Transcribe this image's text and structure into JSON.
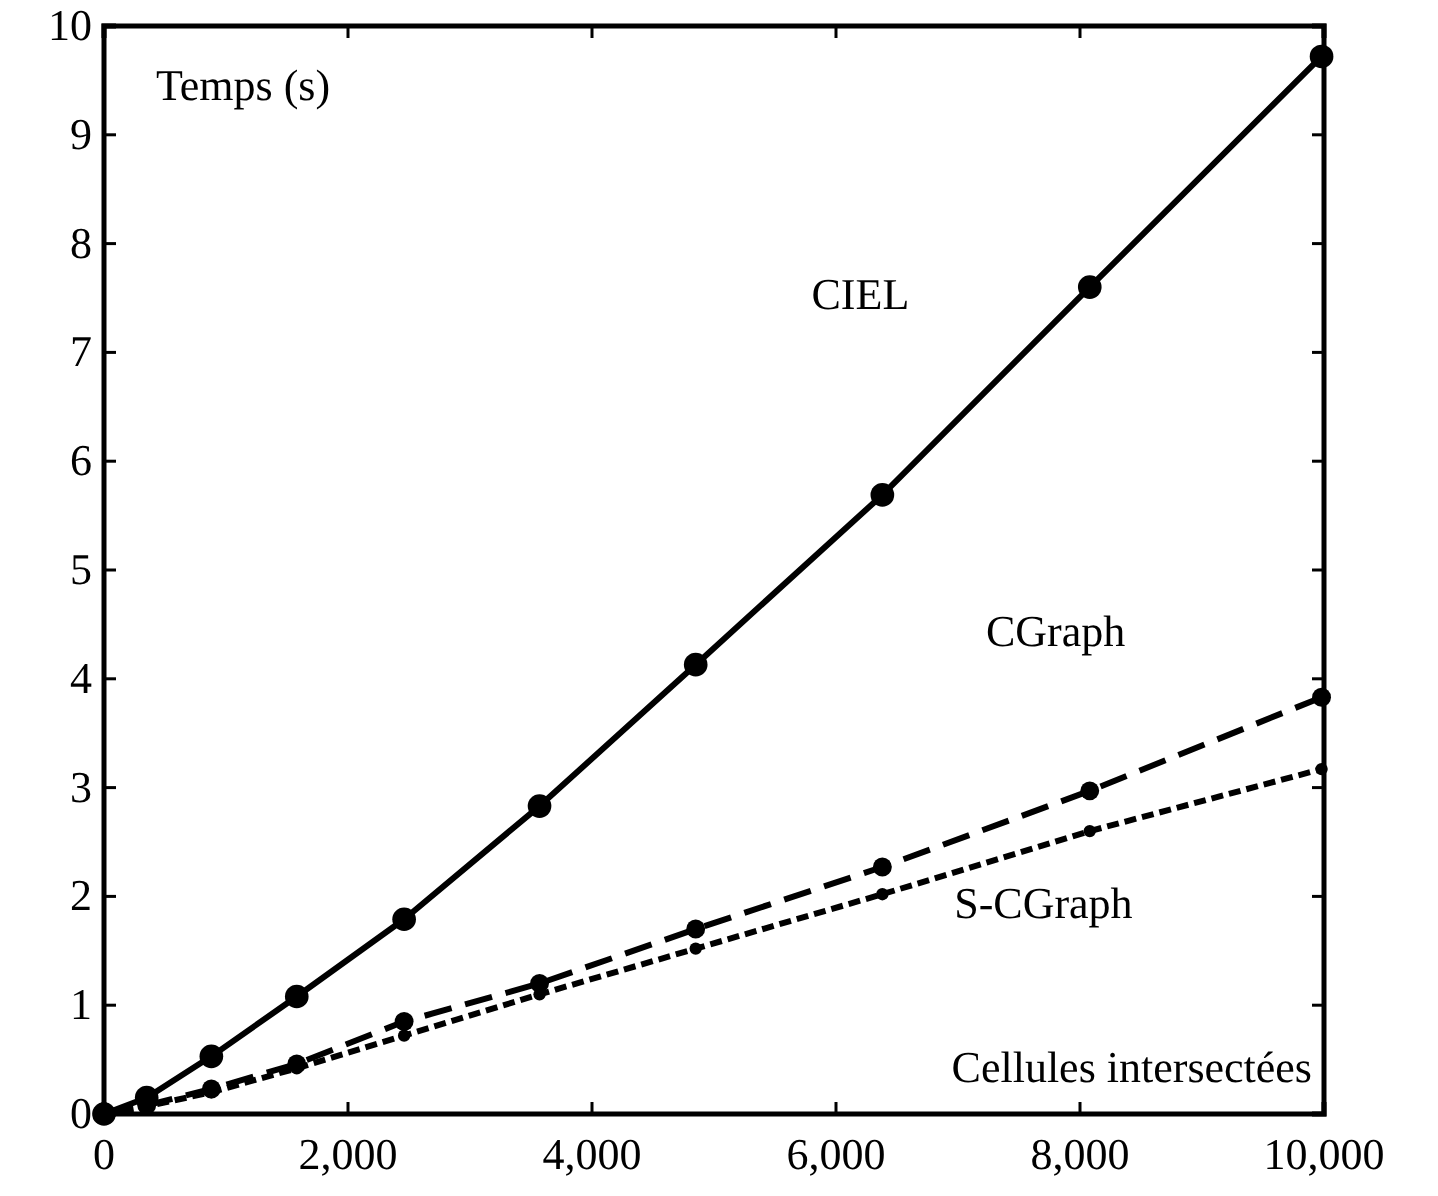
{
  "chart_data": {
    "type": "line",
    "xlabel": "Cellules intersectées",
    "ylabel": "Temps (s)",
    "x": [
      0,
      350,
      880,
      1580,
      2460,
      3570,
      4850,
      6380,
      8080,
      9980
    ],
    "series": [
      {
        "name": "CIEL",
        "color": "#000000",
        "line_style": "solid",
        "values": [
          0,
          0.15,
          0.53,
          1.08,
          1.79,
          2.83,
          4.13,
          5.69,
          7.6,
          9.72
        ]
      },
      {
        "name": "CGraph",
        "color": "#000000",
        "line_style": "dashed",
        "values": [
          0,
          0.08,
          0.23,
          0.46,
          0.85,
          1.2,
          1.7,
          2.27,
          2.97,
          3.83
        ]
      },
      {
        "name": "S-CGraph",
        "color": "#000000",
        "line_style": "dotted",
        "values": [
          0,
          0.07,
          0.2,
          0.42,
          0.72,
          1.1,
          1.52,
          2.02,
          2.6,
          3.17
        ]
      }
    ],
    "xlim": [
      0,
      10000
    ],
    "ylim": [
      0,
      10
    ],
    "xticks": [
      {
        "value": 0,
        "label": "0"
      },
      {
        "value": 2000,
        "label": "2,000"
      },
      {
        "value": 4000,
        "label": "4,000"
      },
      {
        "value": 6000,
        "label": "6,000"
      },
      {
        "value": 8000,
        "label": "8,000"
      },
      {
        "value": 10000,
        "label": "10,000"
      }
    ],
    "yticks": [
      0,
      1,
      2,
      3,
      4,
      5,
      6,
      7,
      8,
      9,
      10
    ],
    "marker": "circle",
    "grid": false
  }
}
